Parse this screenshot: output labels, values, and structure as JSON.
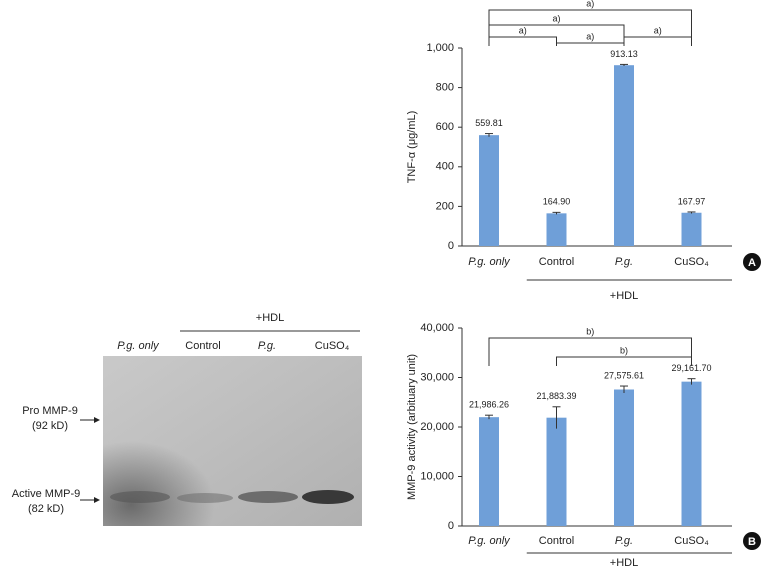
{
  "chart_data": [
    {
      "type": "bar",
      "panel": "A",
      "ylabel": "TNF-α (μg/mL)",
      "categories": [
        "P.g. only",
        "Control",
        "P.g.",
        "CuSO₄"
      ],
      "values": [
        559.81,
        164.9,
        913.13,
        167.97
      ],
      "value_labels": [
        "559.81",
        "164.90",
        "913.13",
        "167.97"
      ],
      "errors": [
        8,
        5,
        4,
        4
      ],
      "color": "#6f9fd8",
      "ylim": [
        0,
        1000
      ],
      "yticks": [
        0,
        200,
        400,
        600,
        800,
        {
          "value": 1000,
          "label": "1,000"
        }
      ],
      "group": {
        "label": "+HDL",
        "from": 1,
        "to": 3
      },
      "brackets": [
        {
          "from": 0,
          "to": 3,
          "label": "a)"
        },
        {
          "from": 0,
          "to": 2,
          "label": "a)"
        },
        {
          "from": 0,
          "to": 1,
          "label": "a)"
        },
        {
          "from": 1,
          "to": 2,
          "label": "a)"
        },
        {
          "from": 2,
          "to": 3,
          "label": "a)"
        }
      ]
    },
    {
      "type": "bar",
      "panel": "B",
      "ylabel": "MMP-9 activity (arbituary unit)",
      "categories": [
        "P.g. only",
        "Control",
        "P.g.",
        "CuSO₄"
      ],
      "values": [
        21986.26,
        21883.39,
        27575.61,
        29161.7
      ],
      "value_labels": [
        "21,986.26",
        "21,883.39",
        "27,575.61",
        "29,161.70"
      ],
      "errors": [
        400,
        2200,
        700,
        600
      ],
      "color": "#6f9fd8",
      "ylim": [
        0,
        40000
      ],
      "yticks": [
        0,
        {
          "value": 10000,
          "label": "10,000"
        },
        {
          "value": 20000,
          "label": "20,000"
        },
        {
          "value": 30000,
          "label": "30,000"
        },
        {
          "value": 40000,
          "label": "40,000"
        }
      ],
      "group": {
        "label": "+HDL",
        "from": 1,
        "to": 3
      },
      "brackets": [
        {
          "from": 0,
          "to": 3,
          "label": "b)"
        },
        {
          "from": 1,
          "to": 3,
          "label": "b)"
        }
      ]
    }
  ],
  "gel": {
    "lanes": [
      "P.g. only",
      "Control",
      "P.g.",
      "CuSO₄"
    ],
    "group": "+HDL",
    "markers": [
      [
        "Pro MMP-9",
        "(92 kD)"
      ],
      [
        "Active MMP-9",
        "(82 kD)"
      ]
    ]
  }
}
